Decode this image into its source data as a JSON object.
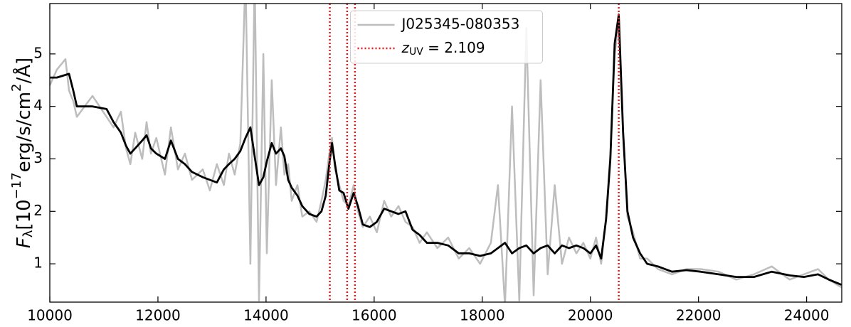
{
  "chart_data": {
    "type": "line",
    "ylabel": {
      "symbol": "F",
      "subscript": "λ",
      "text1": "[10",
      "sup1": "−17",
      "text2": "erg/s/cm",
      "sup2": "2",
      "text3": "/Å]"
    },
    "xlim": [
      10000,
      24650
    ],
    "ylim": [
      0.27,
      5.96
    ],
    "xticks": [
      10000,
      12000,
      14000,
      16000,
      18000,
      20000,
      22000,
      24000
    ],
    "yticks": [
      1,
      2,
      3,
      4,
      5
    ],
    "legend": "upper center",
    "x": [
      10000,
      10130,
      10290,
      10355,
      10434,
      10500,
      10790,
      11050,
      11180,
      11315,
      11410,
      11490,
      11580,
      11710,
      11790,
      11870,
      11970,
      12130,
      12240,
      12370,
      12500,
      12630,
      12830,
      12960,
      13090,
      13220,
      13315,
      13420,
      13525,
      13620,
      13710,
      13790,
      13870,
      13950,
      14015,
      14105,
      14185,
      14275,
      14340,
      14410,
      14475,
      14580,
      14670,
      14800,
      14935,
      15025,
      15105,
      15170,
      15220,
      15275,
      15355,
      15435,
      15525,
      15620,
      15700,
      15790,
      15920,
      16050,
      16185,
      16315,
      16450,
      16580,
      16710,
      16840,
      16975,
      17170,
      17370,
      17565,
      17760,
      17960,
      18160,
      18290,
      18420,
      18550,
      18685,
      18815,
      18950,
      19080,
      19210,
      19340,
      19475,
      19605,
      19740,
      19870,
      20000,
      20105,
      20200,
      20290,
      20370,
      20450,
      20525,
      20605,
      20685,
      20790,
      20920,
      21050,
      21250,
      21510,
      21775,
      22040,
      22370,
      22700,
      23025,
      23355,
      23685,
      23950,
      24210,
      24410,
      24645
    ],
    "series": [
      {
        "name": "J025345-080353",
        "color": "#bdbdbd",
        "width": 2.5,
        "values": [
          4.4,
          4.7,
          4.9,
          4.3,
          4.1,
          3.8,
          4.2,
          3.8,
          3.6,
          3.9,
          3.2,
          2.9,
          3.5,
          3.0,
          3.7,
          3.1,
          3.4,
          2.7,
          3.6,
          2.8,
          3.1,
          2.6,
          2.8,
          2.4,
          2.9,
          2.5,
          3.1,
          2.7,
          3.3,
          6.5,
          1.0,
          6.5,
          0.3,
          5.0,
          1.2,
          4.5,
          2.5,
          3.6,
          2.7,
          2.9,
          2.2,
          2.5,
          1.9,
          2.0,
          1.8,
          2.2,
          2.6,
          3.1,
          3.4,
          2.8,
          2.5,
          2.2,
          2.1,
          2.5,
          2.0,
          1.7,
          1.9,
          1.6,
          2.2,
          1.9,
          2.1,
          1.8,
          1.7,
          1.4,
          1.6,
          1.3,
          1.5,
          1.1,
          1.3,
          1.0,
          1.4,
          2.5,
          0.2,
          4.0,
          0.3,
          5.5,
          0.4,
          4.5,
          0.8,
          2.5,
          1.0,
          1.5,
          1.2,
          1.4,
          1.1,
          1.5,
          1.0,
          1.9,
          3.1,
          5.0,
          5.6,
          3.6,
          1.9,
          1.6,
          1.1,
          1.1,
          0.9,
          0.8,
          0.9,
          0.9,
          0.85,
          0.7,
          0.8,
          0.95,
          0.7,
          0.8,
          0.9,
          0.7,
          0.55
        ]
      },
      {
        "color": "#000000",
        "width": 2.8,
        "values": [
          4.55,
          4.55,
          4.6,
          4.62,
          4.3,
          4.0,
          4.0,
          3.95,
          3.7,
          3.5,
          3.25,
          3.1,
          3.2,
          3.35,
          3.45,
          3.2,
          3.1,
          3.0,
          3.35,
          3.0,
          2.9,
          2.75,
          2.65,
          2.6,
          2.55,
          2.8,
          2.9,
          3.0,
          3.15,
          3.4,
          3.6,
          3.05,
          2.5,
          2.65,
          2.95,
          3.3,
          3.1,
          3.2,
          3.05,
          2.6,
          2.45,
          2.3,
          2.1,
          1.95,
          1.9,
          2.0,
          2.3,
          2.9,
          3.3,
          2.9,
          2.4,
          2.35,
          2.05,
          2.35,
          2.1,
          1.75,
          1.7,
          1.8,
          2.05,
          2.0,
          1.95,
          2.0,
          1.65,
          1.55,
          1.4,
          1.4,
          1.35,
          1.2,
          1.2,
          1.15,
          1.2,
          1.3,
          1.4,
          1.2,
          1.3,
          1.35,
          1.2,
          1.3,
          1.35,
          1.2,
          1.35,
          1.3,
          1.35,
          1.3,
          1.2,
          1.35,
          1.1,
          1.85,
          3.0,
          5.2,
          5.75,
          3.5,
          2.0,
          1.5,
          1.2,
          1.0,
          0.95,
          0.85,
          0.88,
          0.85,
          0.8,
          0.75,
          0.75,
          0.85,
          0.78,
          0.75,
          0.8,
          0.7,
          0.6
        ]
      }
    ],
    "vlines": {
      "x": [
        15180,
        15500,
        15645,
        20525
      ],
      "color": "#e41a1c",
      "label": {
        "symbol": "z",
        "subscript": "UV",
        "text": " = 2.109"
      }
    }
  }
}
